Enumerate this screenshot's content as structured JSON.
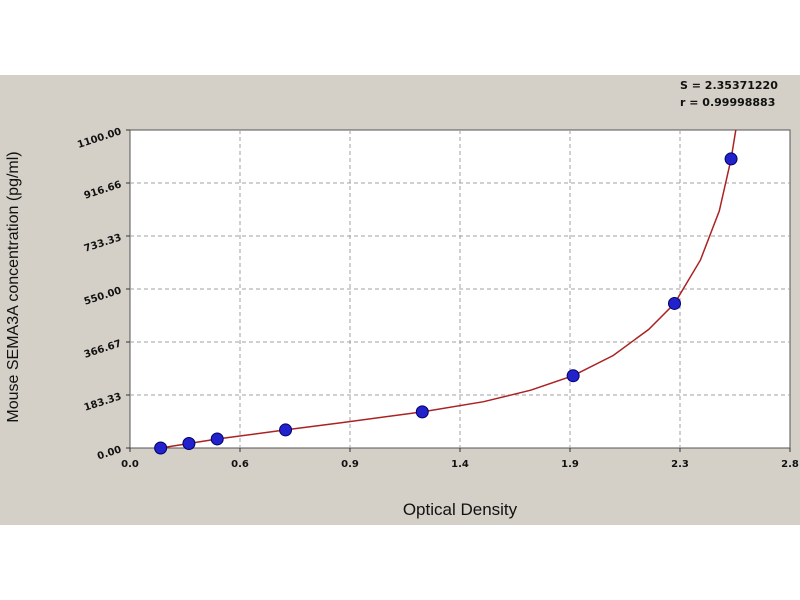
{
  "chart_data": {
    "type": "scatter",
    "title": "",
    "xlabel": "Optical Density",
    "ylabel": "Mouse SEMA3A concentration (pg/ml)",
    "xlim": [
      0.0,
      2.8
    ],
    "ylim": [
      0,
      1100
    ],
    "x_ticks": [
      "0.0",
      "0.6",
      "0.9",
      "1.4",
      "1.9",
      "2.3",
      "2.8"
    ],
    "y_ticks": [
      "0.00",
      "183.33",
      "366.67",
      "550.00",
      "733.33",
      "916.66",
      "1100.00"
    ],
    "grid": true,
    "stats": [
      "S = 2.35371220",
      "r = 0.99998883"
    ],
    "series": [
      {
        "points": [
          {
            "x": 0.13,
            "y": 0
          },
          {
            "x": 0.25,
            "y": 15.6
          },
          {
            "x": 0.37,
            "y": 31.3
          },
          {
            "x": 0.66,
            "y": 62.5
          },
          {
            "x": 1.24,
            "y": 125
          },
          {
            "x": 1.88,
            "y": 250
          },
          {
            "x": 2.31,
            "y": 500
          },
          {
            "x": 2.55,
            "y": 1000
          }
        ]
      }
    ],
    "curve": [
      {
        "x": 0.13,
        "y": 0
      },
      {
        "x": 0.25,
        "y": 15.6
      },
      {
        "x": 0.37,
        "y": 31.3
      },
      {
        "x": 0.66,
        "y": 62.5
      },
      {
        "x": 0.9,
        "y": 88
      },
      {
        "x": 1.24,
        "y": 125
      },
      {
        "x": 1.5,
        "y": 160
      },
      {
        "x": 1.7,
        "y": 200
      },
      {
        "x": 1.88,
        "y": 250
      },
      {
        "x": 2.05,
        "y": 320
      },
      {
        "x": 2.2,
        "y": 410
      },
      {
        "x": 2.31,
        "y": 500
      },
      {
        "x": 2.42,
        "y": 650
      },
      {
        "x": 2.5,
        "y": 820
      },
      {
        "x": 2.55,
        "y": 1000
      },
      {
        "x": 2.57,
        "y": 1100
      }
    ],
    "colors": {
      "background": "#d4d0c8",
      "plot_area": "#ffffff",
      "grid": "#a0a0a0",
      "curve": "#aa2222",
      "marker": "#2222cc"
    }
  }
}
